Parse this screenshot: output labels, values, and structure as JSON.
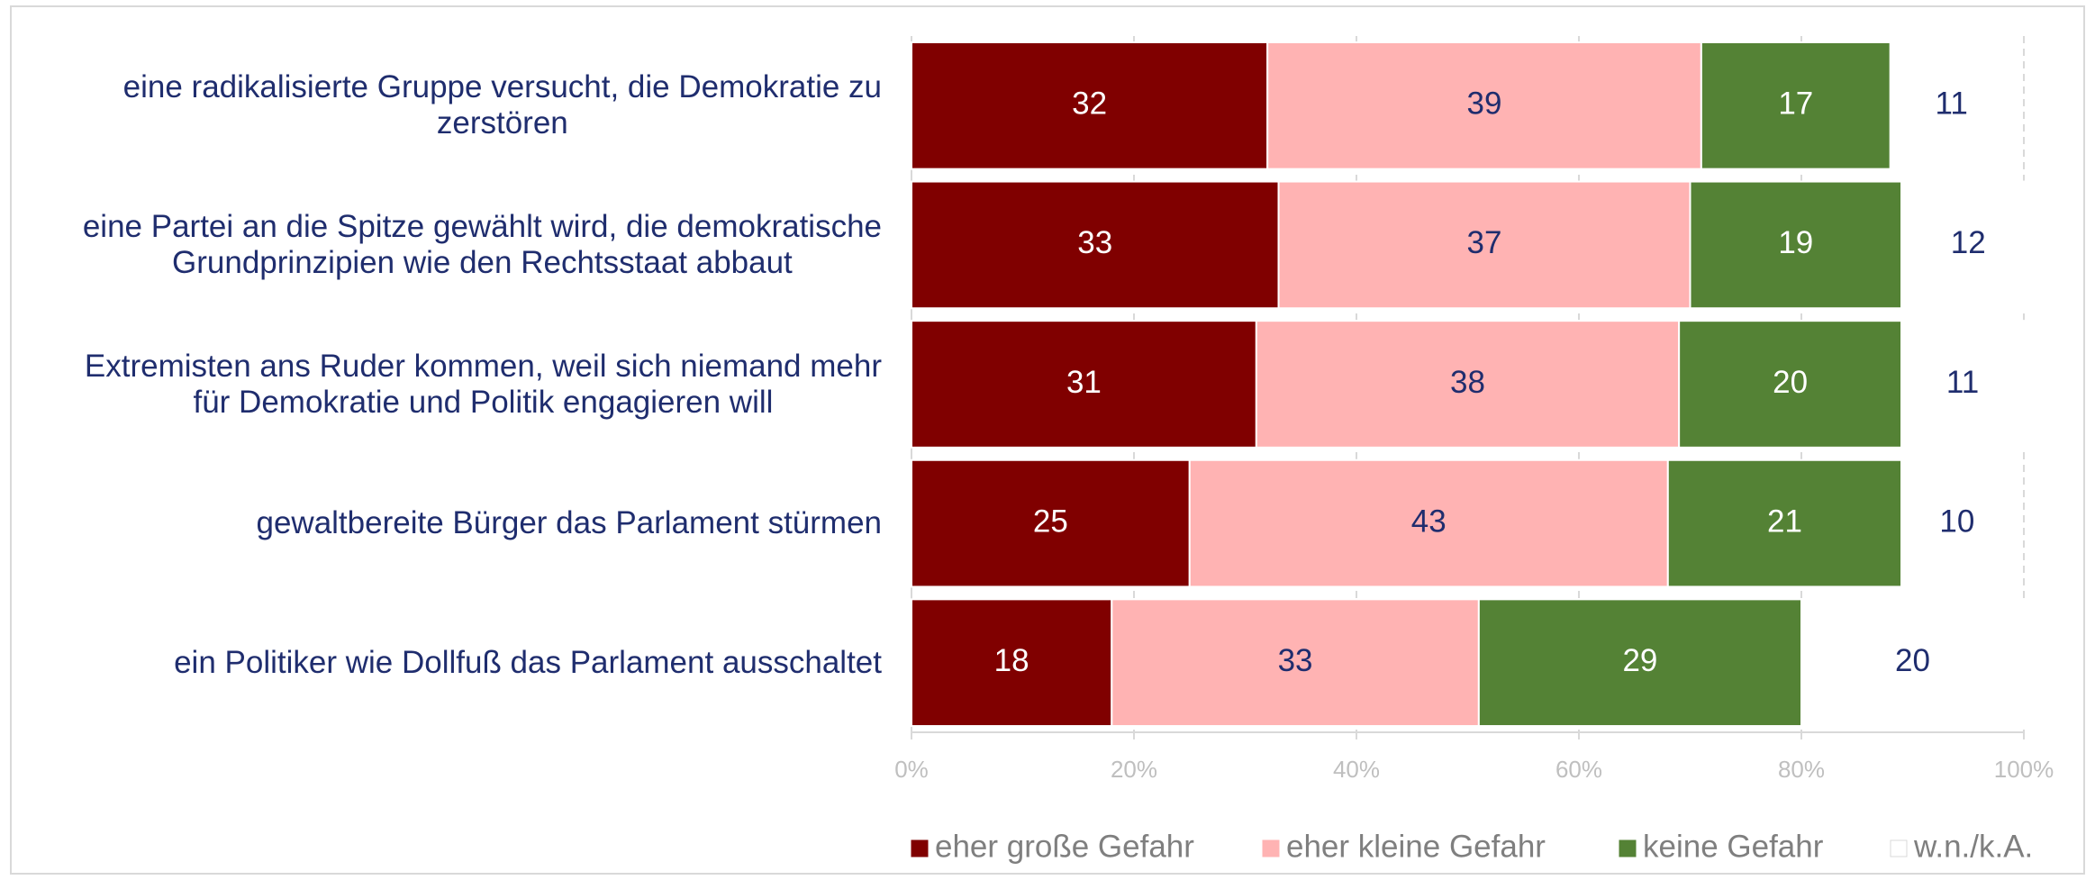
{
  "chart_data": {
    "type": "stacked-bar-horizontal",
    "categories": [
      "eine radikalisierte Gruppe versucht, die Demokratie zu\nzerstören",
      "eine Partei an die Spitze gewählt wird, die demokratische\nGrundprinzipien wie den Rechtsstaat abbaut",
      "Extremisten ans Ruder kommen, weil sich niemand mehr\nfür Demokratie und Politik engagieren will",
      "gewaltbereite Bürger das Parlament stürmen",
      "ein Politiker wie Dollfuß das Parlament ausschaltet"
    ],
    "series": [
      {
        "name": "eher große Gefahr",
        "color": "#800000",
        "values": [
          32,
          33,
          31,
          25,
          18
        ]
      },
      {
        "name": "eher kleine Gefahr",
        "color": "#ffb3b3",
        "values": [
          39,
          37,
          38,
          43,
          33
        ]
      },
      {
        "name": "keine Gefahr",
        "color": "#548235",
        "values": [
          17,
          19,
          20,
          21,
          29
        ]
      },
      {
        "name": "w.n./k.A.",
        "color": "#ffffff",
        "values": [
          11,
          12,
          11,
          10,
          20
        ]
      }
    ],
    "xlim": [
      0,
      100
    ],
    "xticks": [
      {
        "value": 0,
        "label": "0%"
      },
      {
        "value": 20,
        "label": "20%"
      },
      {
        "value": 40,
        "label": "40%"
      },
      {
        "value": 60,
        "label": "60%"
      },
      {
        "value": 80,
        "label": "80%"
      },
      {
        "value": 100,
        "label": "100%"
      }
    ],
    "grid": true,
    "legend": "bottom"
  }
}
